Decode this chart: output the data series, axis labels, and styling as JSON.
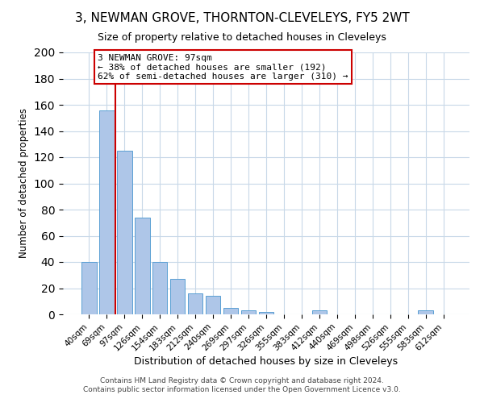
{
  "title": "3, NEWMAN GROVE, THORNTON-CLEVELEYS, FY5 2WT",
  "subtitle": "Size of property relative to detached houses in Cleveleys",
  "xlabel": "Distribution of detached houses by size in Cleveleys",
  "ylabel": "Number of detached properties",
  "bar_labels": [
    "40sqm",
    "69sqm",
    "97sqm",
    "126sqm",
    "154sqm",
    "183sqm",
    "212sqm",
    "240sqm",
    "269sqm",
    "297sqm",
    "326sqm",
    "355sqm",
    "383sqm",
    "412sqm",
    "440sqm",
    "469sqm",
    "498sqm",
    "526sqm",
    "555sqm",
    "583sqm",
    "612sqm"
  ],
  "bar_values": [
    40,
    156,
    125,
    74,
    40,
    27,
    16,
    14,
    5,
    3,
    2,
    0,
    0,
    3,
    0,
    0,
    0,
    0,
    0,
    3,
    0
  ],
  "bar_color": "#aec6e8",
  "bar_edge_color": "#5a9fd4",
  "ylim": [
    0,
    200
  ],
  "yticks": [
    0,
    20,
    40,
    60,
    80,
    100,
    120,
    140,
    160,
    180,
    200
  ],
  "property_line_color": "#cc0000",
  "annotation_title": "3 NEWMAN GROVE: 97sqm",
  "annotation_line1": "← 38% of detached houses are smaller (192)",
  "annotation_line2": "62% of semi-detached houses are larger (310) →",
  "annotation_box_color": "#ffffff",
  "annotation_box_edge_color": "#cc0000",
  "footer1": "Contains HM Land Registry data © Crown copyright and database right 2024.",
  "footer2": "Contains public sector information licensed under the Open Government Licence v3.0.",
  "background_color": "#ffffff",
  "grid_color": "#c8d8e8",
  "figsize": [
    6.0,
    5.0
  ],
  "dpi": 100
}
